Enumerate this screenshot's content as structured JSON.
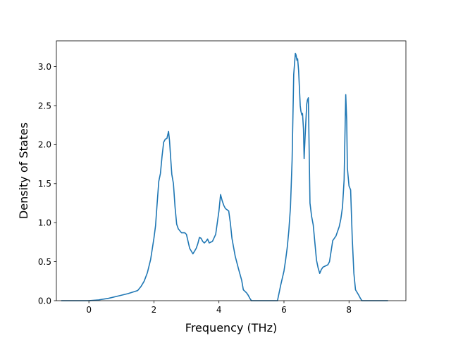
{
  "chart_data": {
    "type": "line",
    "title": "",
    "xlabel": "Frequency (THz)",
    "ylabel": "Density of States",
    "xlim": [
      -1.0,
      9.75
    ],
    "ylim": [
      0.0,
      3.33
    ],
    "xticks": [
      0,
      2,
      4,
      6,
      8
    ],
    "xtick_labels": [
      "0",
      "2",
      "4",
      "6",
      "8"
    ],
    "yticks": [
      0.0,
      0.5,
      1.0,
      1.5,
      2.0,
      2.5,
      3.0
    ],
    "ytick_labels": [
      "0.0",
      "0.5",
      "1.0",
      "1.5",
      "2.0",
      "2.5",
      "3.0"
    ],
    "grid": false,
    "legend": "none",
    "line_color": "#1f77b4",
    "series": [
      {
        "x": [
          -0.85,
          0.0,
          0.3,
          0.6,
          0.9,
          1.2,
          1.5,
          1.6,
          1.7,
          1.8,
          1.9,
          2.0,
          2.05,
          2.1,
          2.15,
          2.2,
          2.25,
          2.3,
          2.35,
          2.4,
          2.45,
          2.48,
          2.52,
          2.55,
          2.6,
          2.65,
          2.7,
          2.75,
          2.85,
          2.95,
          3.0,
          3.1,
          3.2,
          3.3,
          3.35,
          3.4,
          3.45,
          3.5,
          3.55,
          3.6,
          3.65,
          3.7,
          3.8,
          3.9,
          4.0,
          4.05,
          4.1,
          4.15,
          4.2,
          4.3,
          4.35,
          4.4,
          4.5,
          4.6,
          4.7,
          4.75,
          4.8,
          4.85,
          4.9,
          4.95,
          5.0,
          5.5,
          5.8,
          5.85,
          5.9,
          6.0,
          6.05,
          6.1,
          6.15,
          6.2,
          6.25,
          6.3,
          6.35,
          6.37,
          6.4,
          6.42,
          6.45,
          6.5,
          6.52,
          6.55,
          6.57,
          6.6,
          6.62,
          6.65,
          6.7,
          6.72,
          6.75,
          6.8,
          6.85,
          6.9,
          7.0,
          7.05,
          7.1,
          7.15,
          7.2,
          7.35,
          7.4,
          7.5,
          7.6,
          7.7,
          7.75,
          7.8,
          7.85,
          7.87,
          7.9,
          7.93,
          7.95,
          8.0,
          8.05,
          8.1,
          8.15,
          8.2,
          8.3,
          8.35,
          8.4,
          9.2
        ],
        "y": [
          0.0,
          0.0,
          0.01,
          0.03,
          0.06,
          0.09,
          0.13,
          0.18,
          0.25,
          0.36,
          0.53,
          0.8,
          0.96,
          1.25,
          1.53,
          1.63,
          1.85,
          2.03,
          2.07,
          2.08,
          2.17,
          2.05,
          1.8,
          1.62,
          1.5,
          1.2,
          0.98,
          0.92,
          0.87,
          0.87,
          0.85,
          0.67,
          0.6,
          0.67,
          0.73,
          0.81,
          0.8,
          0.76,
          0.74,
          0.76,
          0.79,
          0.74,
          0.76,
          0.85,
          1.15,
          1.36,
          1.28,
          1.22,
          1.18,
          1.15,
          1.0,
          0.8,
          0.57,
          0.41,
          0.26,
          0.14,
          0.12,
          0.1,
          0.07,
          0.03,
          0.0,
          0.0,
          0.0,
          0.1,
          0.2,
          0.38,
          0.52,
          0.68,
          0.9,
          1.2,
          1.8,
          2.9,
          3.17,
          3.15,
          3.08,
          3.1,
          2.95,
          2.5,
          2.43,
          2.38,
          2.4,
          2.2,
          1.82,
          2.1,
          2.52,
          2.57,
          2.6,
          1.25,
          1.08,
          0.97,
          0.52,
          0.42,
          0.35,
          0.4,
          0.43,
          0.46,
          0.5,
          0.77,
          0.83,
          0.95,
          1.05,
          1.2,
          1.55,
          2.0,
          2.64,
          2.3,
          1.7,
          1.47,
          1.42,
          0.8,
          0.35,
          0.14,
          0.07,
          0.03,
          0.0,
          0.0
        ]
      }
    ]
  }
}
